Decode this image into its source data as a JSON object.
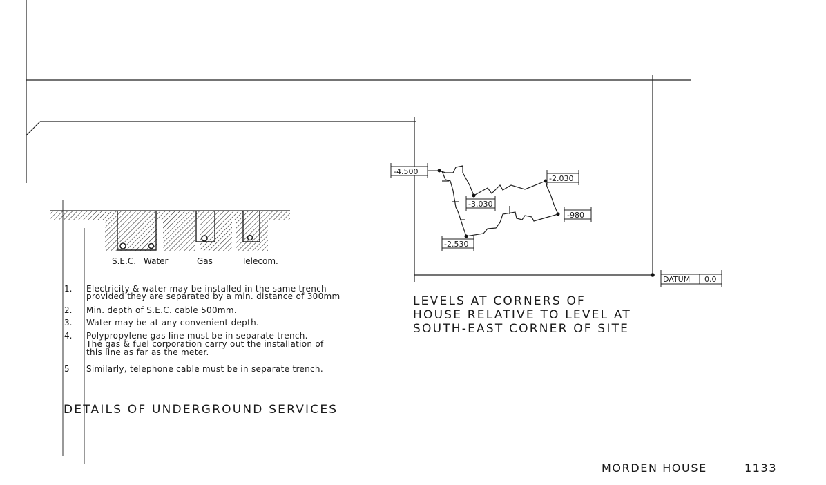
{
  "trench_labels": {
    "sec": "S.E.C.",
    "water": "Water",
    "gas": "Gas",
    "telecom": "Telecom."
  },
  "notes": [
    {
      "num": "1.",
      "lines": [
        "Electricity & water may be installed in the same trench",
        "provided they are separated by a min. distance of 300mm"
      ]
    },
    {
      "num": "2.",
      "lines": [
        "Min. depth of S.E.C. cable 500mm."
      ]
    },
    {
      "num": "3.",
      "lines": [
        "Water may be at any convenient depth."
      ]
    },
    {
      "num": "4.",
      "lines": [
        "Polypropylene gas line must be in separate trench.",
        "The gas & fuel corporation carry out the installation of",
        "this line as far as the meter."
      ]
    },
    {
      "num": "5",
      "lines": [
        "Similarly, telephone cable must be in separate trench."
      ]
    }
  ],
  "services_title": "DETAILS OF UNDERGROUND SERVICES",
  "levels": {
    "l1": "-4.500",
    "l2": "-2.030",
    "l3": "-3.030",
    "l4": "-980",
    "l5": "-2.530",
    "datum": "DATUM",
    "datum_value": "0.0"
  },
  "levels_caption": [
    "LEVELS AT CORNERS OF",
    "HOUSE RELATIVE TO LEVEL AT",
    "SOUTH-EAST CORNER OF SITE"
  ],
  "footer": {
    "project": "MORDEN HOUSE",
    "sheet": "1133"
  }
}
